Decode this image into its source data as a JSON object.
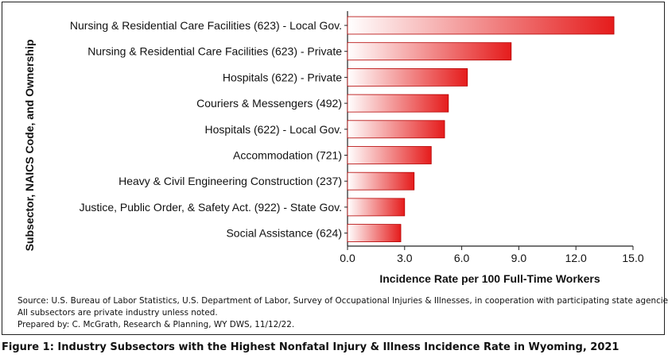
{
  "chart_data": {
    "type": "bar",
    "orientation": "horizontal",
    "categories": [
      "Nursing & Residential Care Facilities (623) - Local Gov.",
      "Nursing & Residential Care Facilities (623) - Private",
      "Hospitals (622) - Private",
      "Couriers & Messengers (492)",
      "Hospitals (622) - Local Gov.",
      "Accommodation (721)",
      "Heavy & Civil Engineering Construction (237)",
      "Justice, Public Order, & Safety Act. (922) - State Gov.",
      "Social Assistance (624)"
    ],
    "values": [
      14.0,
      8.6,
      6.3,
      5.3,
      5.1,
      4.4,
      3.5,
      3.0,
      2.8
    ],
    "xlabel": "Incidence Rate per 100 Full-Time Workers",
    "ylabel": "Subsector, NAICS Code, and Ownership",
    "xlim": [
      0,
      15
    ],
    "xticks": [
      "0.0",
      "3.0",
      "6.0",
      "9.0",
      "12.0",
      "15.0"
    ],
    "grid": false,
    "bar_color_start": "#ffffff",
    "bar_color_end": "#e51c1c",
    "bar_border": "#b40000"
  },
  "notes": {
    "source": "Source: U.S. Bureau of Labor Statistics, U.S. Department of Labor, Survey of Occupational Injuries & Illnesses, in cooperation with participating state agencies.",
    "private_note": "All subsectors are private industry unless noted.",
    "prepared": "Prepared by: C. McGrath, Research & Planning, WY DWS, 11/12/22."
  },
  "caption": "Figure 1: Industry Subsectors with the Highest Nonfatal Injury & Illness Incidence Rate in Wyoming, 2021"
}
